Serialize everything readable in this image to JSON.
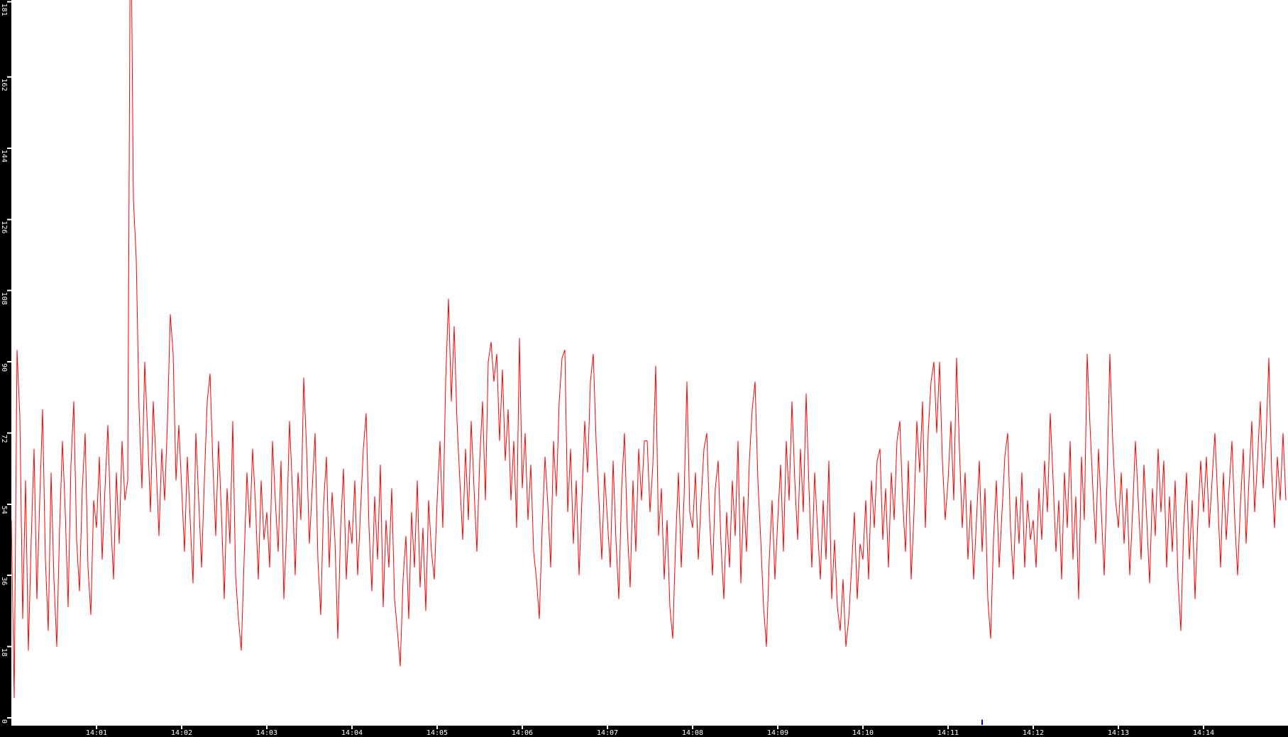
{
  "chart_data": {
    "type": "line",
    "title": "",
    "grid": false,
    "legend": null,
    "background_color": "#ffffff",
    "axis_bar_color": "#000000",
    "axis_text_color": "#ffffff",
    "x_axis": {
      "tick_labels": [
        "14:01",
        "14:02",
        "14:03",
        "14:04",
        "14:05",
        "14:06",
        "14:07",
        "14:08",
        "14:09",
        "14:10",
        "14:11",
        "14:12",
        "14:13",
        "14:14"
      ],
      "start_time": "14:00",
      "end_time": "14:15",
      "seconds_per_sample": 2
    },
    "y_axis": {
      "tick_values": [
        0,
        18,
        36,
        54,
        72,
        90,
        108,
        126,
        144,
        162,
        181
      ],
      "min": 0,
      "max": 181
    },
    "series": [
      {
        "name": "red-series",
        "color": "#ff0000",
        "values": [
          50,
          5,
          93,
          76,
          25,
          60,
          17,
          45,
          68,
          30,
          55,
          78,
          40,
          22,
          62,
          35,
          18,
          48,
          70,
          52,
          28,
          64,
          80,
          45,
          32,
          58,
          72,
          38,
          26,
          55,
          48,
          66,
          40,
          58,
          74,
          50,
          35,
          62,
          44,
          70,
          55,
          60,
          215,
          131,
          116,
          78,
          58,
          90,
          72,
          52,
          80,
          64,
          46,
          68,
          55,
          75,
          102,
          92,
          60,
          74,
          58,
          42,
          66,
          50,
          34,
          72,
          55,
          38,
          60,
          80,
          87,
          64,
          46,
          70,
          52,
          30,
          58,
          44,
          75,
          36,
          25,
          17,
          40,
          62,
          48,
          68,
          54,
          35,
          60,
          45,
          52,
          38,
          70,
          55,
          42,
          65,
          30,
          48,
          75,
          58,
          36,
          62,
          50,
          86,
          68,
          44,
          58,
          72,
          40,
          26,
          54,
          66,
          38,
          57,
          45,
          20,
          48,
          63,
          35,
          50,
          44,
          60,
          36,
          52,
          68,
          77,
          48,
          32,
          56,
          40,
          64,
          28,
          50,
          38,
          58,
          30,
          22,
          13,
          35,
          46,
          25,
          52,
          38,
          60,
          33,
          48,
          27,
          55,
          42,
          35,
          55,
          70,
          48,
          85,
          106,
          80,
          99,
          75,
          60,
          45,
          68,
          50,
          75,
          58,
          42,
          65,
          80,
          55,
          90,
          95,
          85,
          92,
          70,
          88,
          65,
          78,
          55,
          70,
          48,
          96,
          58,
          72,
          50,
          64,
          42,
          35,
          25,
          48,
          66,
          54,
          38,
          70,
          56,
          80,
          91,
          93,
          52,
          68,
          44,
          60,
          36,
          55,
          75,
          62,
          85,
          92,
          70,
          55,
          40,
          62,
          50,
          38,
          65,
          45,
          30,
          58,
          72,
          48,
          33,
          60,
          42,
          68,
          55,
          70,
          70,
          52,
          64,
          89,
          46,
          58,
          35,
          50,
          28,
          20,
          44,
          62,
          38,
          56,
          85,
          52,
          48,
          62,
          40,
          55,
          68,
          72,
          50,
          36,
          58,
          65,
          44,
          30,
          52,
          38,
          60,
          46,
          70,
          34,
          56,
          42,
          65,
          78,
          85,
          60,
          45,
          28,
          18,
          40,
          55,
          35,
          50,
          64,
          42,
          70,
          55,
          80,
          60,
          45,
          68,
          52,
          82,
          58,
          38,
          62,
          48,
          35,
          55,
          40,
          65,
          30,
          45,
          28,
          22,
          35,
          18,
          25,
          38,
          52,
          30,
          44,
          40,
          55,
          35,
          60,
          48,
          65,
          68,
          45,
          58,
          38,
          62,
          50,
          70,
          75,
          55,
          42,
          65,
          35,
          52,
          75,
          62,
          80,
          48,
          72,
          85,
          90,
          72,
          90,
          65,
          50,
          60,
          75,
          55,
          91,
          68,
          48,
          62,
          40,
          55,
          35,
          50,
          65,
          42,
          58,
          30,
          20,
          45,
          60,
          38,
          52,
          66,
          72,
          48,
          35,
          56,
          44,
          62,
          38,
          55,
          45,
          50,
          38,
          58,
          45,
          65,
          52,
          77,
          60,
          42,
          55,
          35,
          62,
          48,
          70,
          40,
          56,
          30,
          66,
          50,
          92,
          74,
          58,
          44,
          68,
          52,
          36,
          60,
          92,
          70,
          55,
          48,
          62,
          44,
          58,
          36,
          52,
          70,
          55,
          40,
          64,
          50,
          34,
          58,
          46,
          68,
          52,
          65,
          38,
          56,
          42,
          60,
          35,
          22,
          48,
          62,
          40,
          55,
          30,
          50,
          65,
          52,
          66,
          48,
          60,
          72,
          55,
          38,
          62,
          45,
          58,
          70,
          50,
          36,
          54,
          68,
          44,
          60,
          75,
          52,
          65,
          80,
          58,
          70,
          91,
          62,
          48,
          66,
          55,
          72,
          55
        ]
      },
      {
        "name": "blue-series",
        "color": "#0000ff",
        "points": [
          {
            "seconds_after_start": 684,
            "value": 1.2
          }
        ]
      }
    ]
  }
}
